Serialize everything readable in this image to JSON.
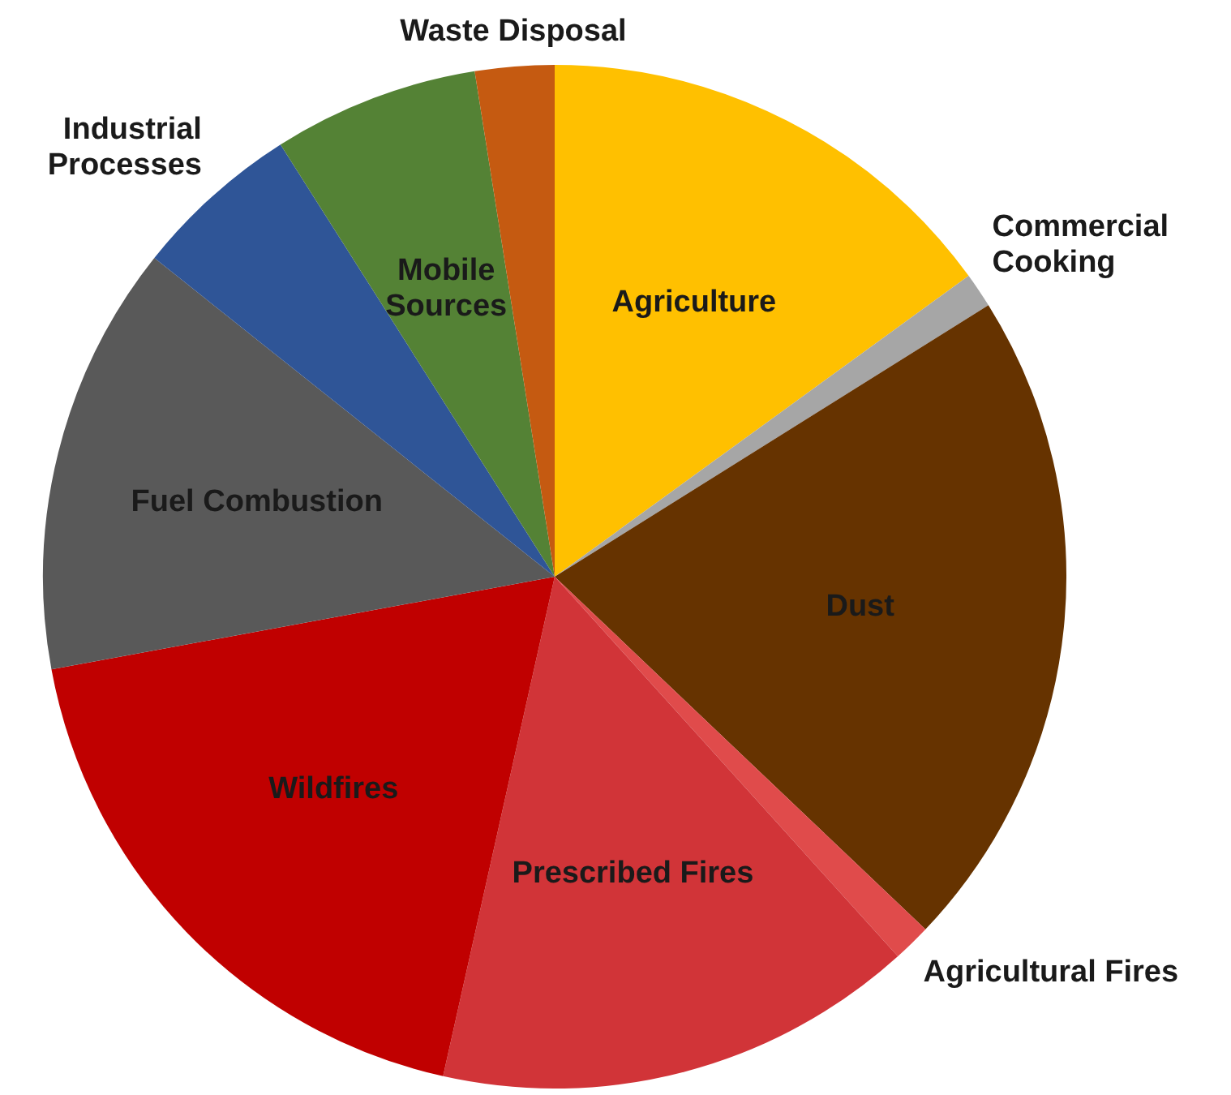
{
  "chart_data": {
    "type": "pie",
    "categories": [
      "Agriculture",
      "Commercial Cooking",
      "Dust",
      "Agricultural Fires",
      "Prescribed Fires",
      "Wildfires",
      "Fuel Combustion",
      "Industrial Processes",
      "Mobile Sources",
      "Waste Disposal"
    ],
    "values": [
      15,
      1.1,
      21,
      1.2,
      15.2,
      18.6,
      13.6,
      5.3,
      6.5,
      2.5
    ],
    "colors": [
      "#ffc000",
      "#a6a6a6",
      "#663300",
      "#e04b4b",
      "#d13438",
      "#c00000",
      "#595959",
      "#2f5597",
      "#548235",
      "#c55a11"
    ],
    "legend": false
  }
}
